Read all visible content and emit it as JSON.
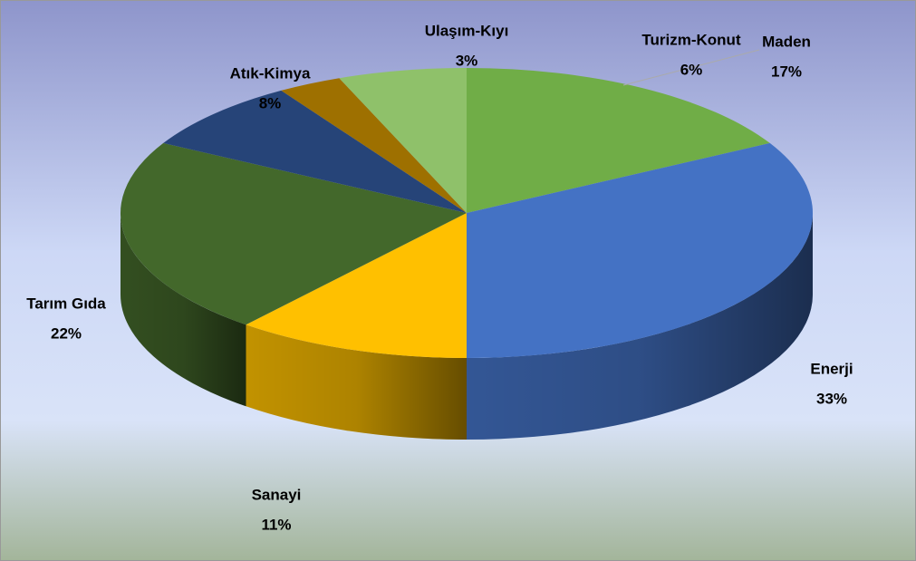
{
  "chart_data": {
    "type": "pie",
    "categories": [
      "Maden",
      "Enerji",
      "Sanayi",
      "Tarım Gıda",
      "Atık-Kimya",
      "Ulaşım-Kıyı",
      "Turizm-Konut"
    ],
    "values": [
      17,
      33,
      11,
      22,
      8,
      3,
      6
    ],
    "value_labels": [
      "17%",
      "33%",
      "11%",
      "22%",
      "8%",
      "3%",
      "6%"
    ],
    "colors": [
      "#70ad47",
      "#4472c4",
      "#ffc000",
      "#43682b",
      "#264478",
      "#9e7000",
      "#8fc16a"
    ]
  }
}
